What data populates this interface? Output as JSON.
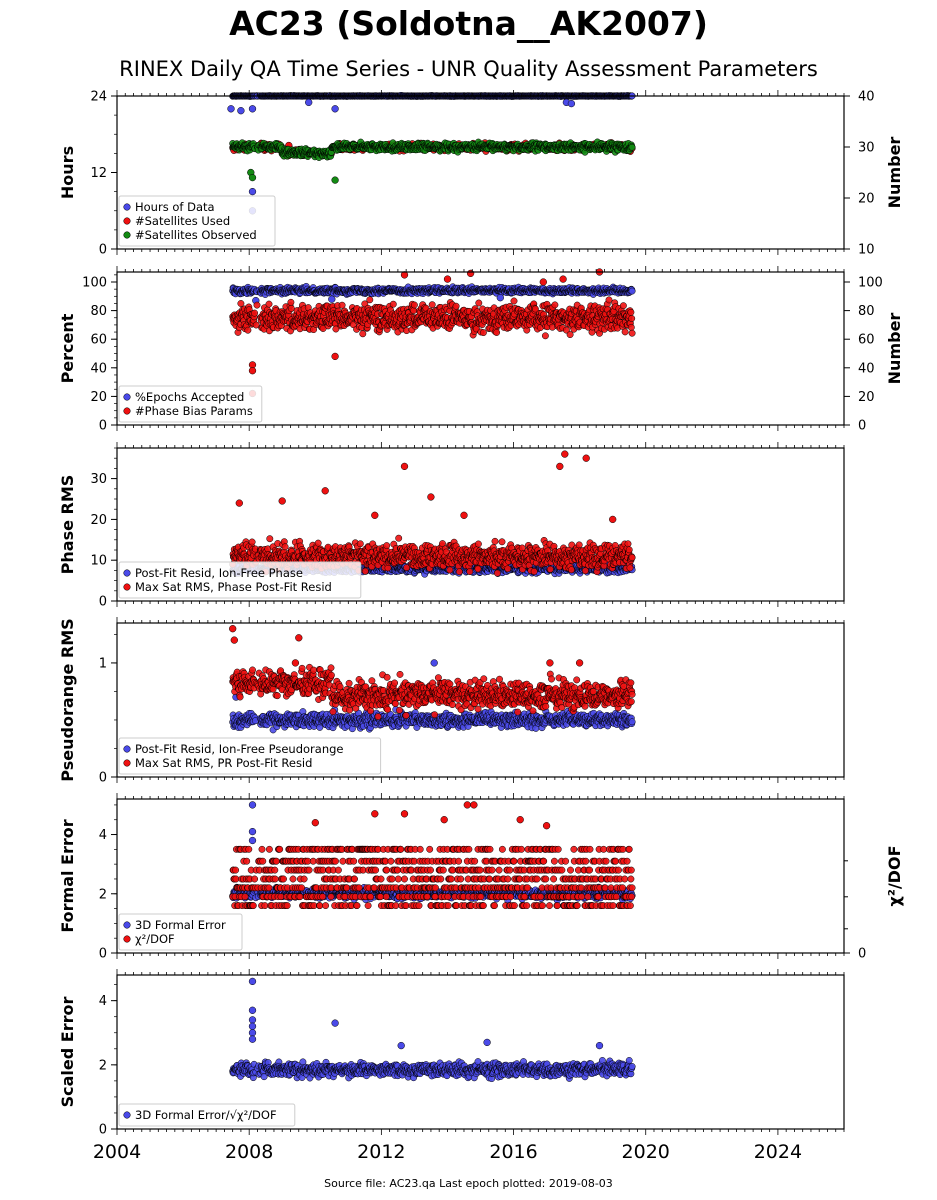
{
  "title": "AC23 (Soldotna__AK2007)",
  "subtitle": "RINEX Daily QA Time Series - UNR Quality Assessment Parameters",
  "footer": "Source file: AC23.qa Last epoch plotted: 2019-08-03",
  "colors": {
    "blue": "#4a4ae8",
    "red": "#ee1111",
    "green": "#138a13",
    "edge": "#000000"
  },
  "chart_data": [
    {
      "type": "scatter",
      "panel": "hours",
      "ylabel": "Hours",
      "ylabel_right": "Number",
      "xlim": [
        2004,
        2026
      ],
      "ylim": [
        0,
        24
      ],
      "yticks": [
        0,
        12,
        24
      ],
      "ylim_right": [
        10,
        40
      ],
      "yticks_right": [
        10,
        20,
        30,
        40
      ],
      "legend": "bottom-left",
      "series": [
        {
          "name": "Hours of Data",
          "color": "blue",
          "axis": "left",
          "x_range": [
            2007.5,
            2019.6
          ],
          "typical": 24.0,
          "spread": 0.05,
          "outliers": [
            [
              2007.45,
              22.0
            ],
            [
              2007.75,
              21.7
            ],
            [
              2008.1,
              22.0
            ],
            [
              2008.1,
              9.0
            ],
            [
              2008.1,
              6.0
            ],
            [
              2009.8,
              23.0
            ],
            [
              2010.6,
              22.0
            ],
            [
              2017.6,
              23.0
            ],
            [
              2017.75,
              22.8
            ]
          ]
        },
        {
          "name": "#Satellites Used",
          "color": "red",
          "axis": "right",
          "x_range": [
            2007.5,
            2019.6
          ],
          "typical": 30.0,
          "spread": 0.6,
          "outliers": [
            [
              2009.2,
              30.3
            ]
          ]
        },
        {
          "name": "#Satellites Observed",
          "color": "green",
          "axis": "right",
          "x_range": [
            2007.5,
            2019.6
          ],
          "typical": 30.0,
          "spread": 0.7,
          "outliers": [
            [
              2008.05,
              25.0
            ],
            [
              2008.1,
              24.0
            ],
            [
              2010.6,
              23.5
            ]
          ]
        }
      ]
    },
    {
      "type": "scatter",
      "panel": "percent",
      "ylabel": "Percent",
      "ylabel_right": "Number",
      "xlim": [
        2004,
        2026
      ],
      "ylim": [
        0,
        107
      ],
      "yticks": [
        0,
        20,
        40,
        60,
        80,
        100
      ],
      "ylim_right": [
        0,
        107
      ],
      "yticks_right": [
        0,
        20,
        40,
        60,
        80,
        100
      ],
      "legend": "bottom-left",
      "series": [
        {
          "name": "%Epochs Accepted",
          "color": "blue",
          "axis": "left",
          "x_range": [
            2007.5,
            2019.6
          ],
          "typical": 94,
          "spread": 2,
          "outliers": [
            [
              2008.2,
              87
            ],
            [
              2010.5,
              88
            ],
            [
              2015.6,
              89
            ]
          ]
        },
        {
          "name": "#Phase Bias Params",
          "color": "red",
          "axis": "right",
          "x_range": [
            2007.5,
            2019.6
          ],
          "typical": 75,
          "spread": 9,
          "outliers": [
            [
              2008.1,
              42
            ],
            [
              2008.1,
              38
            ],
            [
              2008.1,
              22
            ],
            [
              2010.6,
              48
            ],
            [
              2012.7,
              105
            ],
            [
              2014.0,
              102
            ],
            [
              2014.7,
              106
            ],
            [
              2016.9,
              100
            ],
            [
              2017.5,
              102
            ],
            [
              2018.6,
              107
            ]
          ]
        }
      ]
    },
    {
      "type": "scatter",
      "panel": "phase_rms",
      "ylabel": "Phase RMS",
      "xlim": [
        2004,
        2026
      ],
      "ylim": [
        0,
        37.5
      ],
      "yticks": [
        0,
        10,
        20,
        30
      ],
      "legend": "bottom-left",
      "series": [
        {
          "name": "Post-Fit Resid, Ion-Free Phase",
          "color": "blue",
          "x_range": [
            2007.5,
            2019.6
          ],
          "typical": 8.0,
          "spread": 1.0,
          "outliers": []
        },
        {
          "name": "Max Sat RMS, Phase Post-Fit Resid",
          "color": "red",
          "x_range": [
            2007.5,
            2019.6
          ],
          "typical": 11,
          "spread": 3,
          "outliers": [
            [
              2007.7,
              24
            ],
            [
              2009.0,
              24.5
            ],
            [
              2010.3,
              27
            ],
            [
              2011.8,
              21
            ],
            [
              2012.7,
              33
            ],
            [
              2013.5,
              25.5
            ],
            [
              2014.5,
              21
            ],
            [
              2017.4,
              33
            ],
            [
              2017.55,
              36
            ],
            [
              2018.2,
              35
            ],
            [
              2019.0,
              20
            ]
          ]
        }
      ]
    },
    {
      "type": "scatter",
      "panel": "pseudorange_rms",
      "ylabel": "Pseudorange RMS",
      "xlim": [
        2004,
        2026
      ],
      "ylim": [
        0,
        1.35
      ],
      "yticks": [
        0,
        1
      ],
      "legend": "bottom-left",
      "series": [
        {
          "name": "Post-Fit Resid, Ion-Free Pseudorange",
          "color": "blue",
          "x_range": [
            2007.5,
            2019.6
          ],
          "typical": 0.5,
          "spread": 0.06,
          "outliers": [
            [
              2013.6,
              1.0
            ],
            [
              2007.6,
              0.7
            ]
          ]
        },
        {
          "name": "Max Sat RMS, PR Post-Fit Resid",
          "color": "red",
          "x_range": [
            2007.5,
            2019.6
          ],
          "typical": 0.72,
          "spread": 0.12,
          "outliers": [
            [
              2007.5,
              1.3
            ],
            [
              2007.55,
              1.2
            ],
            [
              2009.4,
              1.0
            ],
            [
              2009.5,
              1.22
            ],
            [
              2017.1,
              1.0
            ],
            [
              2018.0,
              1.0
            ]
          ]
        }
      ]
    },
    {
      "type": "scatter",
      "panel": "formal_error",
      "ylabel": "Formal Error",
      "ylabel_right": "χ²/DOF",
      "xlim": [
        2004,
        2026
      ],
      "ylim": [
        0,
        5.2
      ],
      "yticks": [
        0,
        2,
        4
      ],
      "yticks_right": [
        0
      ],
      "legend": "bottom-left",
      "series": [
        {
          "name": "3D Formal Error",
          "color": "blue",
          "axis": "left",
          "x_range": [
            2007.5,
            2019.6
          ],
          "typical": 2.0,
          "spread": 0.15,
          "outliers": [
            [
              2008.1,
              5.0
            ],
            [
              2008.1,
              4.1
            ],
            [
              2008.1,
              3.8
            ]
          ]
        },
        {
          "name": "χ²/DOF",
          "color": "red",
          "axis": "right",
          "x_range": [
            2007.5,
            2019.6
          ],
          "levels": [
            1.6,
            1.9,
            2.2,
            2.5,
            2.8,
            3.1,
            3.5
          ],
          "outliers": [
            [
              2011.8,
              4.7
            ],
            [
              2012.7,
              4.7
            ],
            [
              2013.9,
              4.5
            ],
            [
              2014.6,
              5.0
            ],
            [
              2014.8,
              5.0
            ],
            [
              2016.2,
              4.5
            ],
            [
              2017.0,
              4.3
            ],
            [
              2010.0,
              4.4
            ]
          ]
        }
      ]
    },
    {
      "type": "scatter",
      "panel": "scaled_error",
      "ylabel": "Scaled Error",
      "xlim": [
        2004,
        2026
      ],
      "ylim": [
        0,
        4.8
      ],
      "yticks": [
        0,
        2,
        4
      ],
      "legend": "bottom-left",
      "series": [
        {
          "name": "3D Formal Error/√χ²/DOF",
          "color": "blue",
          "x_range": [
            2007.5,
            2019.6
          ],
          "typical": 1.85,
          "spread": 0.2,
          "outliers": [
            [
              2008.1,
              4.6
            ],
            [
              2008.1,
              3.7
            ],
            [
              2008.1,
              3.4
            ],
            [
              2008.1,
              3.2
            ],
            [
              2008.1,
              3.0
            ],
            [
              2008.1,
              2.8
            ],
            [
              2010.6,
              3.3
            ],
            [
              2012.6,
              2.6
            ],
            [
              2015.2,
              2.7
            ],
            [
              2018.6,
              2.6
            ]
          ]
        }
      ]
    }
  ],
  "x_axis": {
    "ticks": [
      2004,
      2008,
      2012,
      2016,
      2020,
      2024
    ],
    "tick_labels": [
      "2004",
      "2008",
      "2012",
      "2016",
      "2020",
      "2024"
    ]
  }
}
